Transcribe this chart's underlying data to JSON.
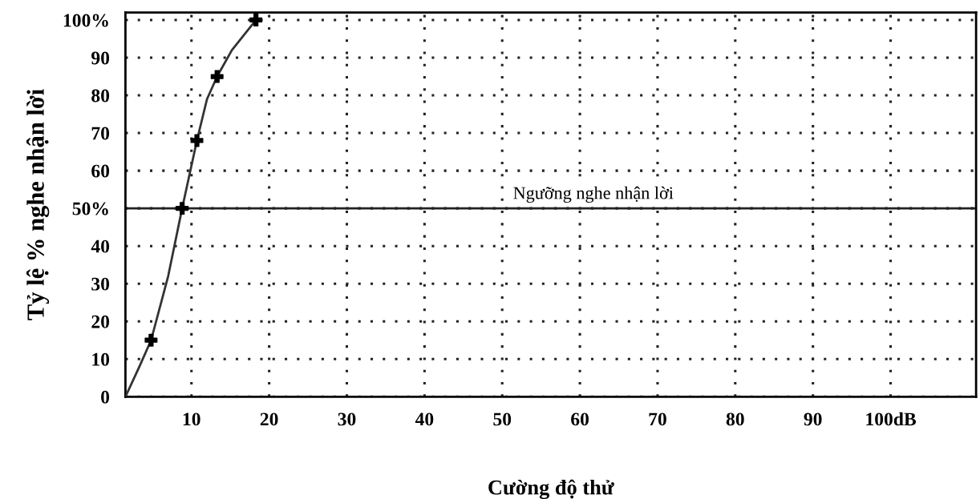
{
  "chart_data": {
    "type": "line",
    "xlabel": "Cường độ thử",
    "ylabel": "Tỷ lệ % nghe nhận lời",
    "xlim": [
      1.5,
      111
    ],
    "ylim": [
      0,
      102
    ],
    "xticks": [
      10,
      20,
      30,
      40,
      50,
      60,
      70,
      80,
      90,
      {
        "value": 100,
        "label": "100dB"
      }
    ],
    "yticks": [
      0,
      10,
      20,
      30,
      40,
      {
        "value": 50,
        "label": "50%"
      },
      60,
      70,
      80,
      90,
      {
        "value": 100,
        "label": "100%"
      }
    ],
    "grid": true,
    "series": [
      {
        "color": "#333333",
        "marker": "none",
        "x": [
          1.5,
          3.3,
          4.8,
          7.0,
          8.8,
          10.7,
          12.0,
          13.3,
          15.2,
          18.3
        ],
        "values": [
          0,
          8,
          15,
          32,
          50,
          68,
          79,
          85,
          92,
          100
        ]
      },
      {
        "type": "scatter",
        "color": "#000000",
        "marker": "cross",
        "x": [
          4.8,
          8.8,
          10.7,
          13.3,
          18.3
        ],
        "values": [
          15,
          50,
          68,
          85,
          100
        ]
      }
    ],
    "ref_lines": [
      {
        "axis": "y",
        "value": 50,
        "label": "Ngưỡng nghe nhận lời",
        "color": "#222222",
        "line_style": "solid"
      }
    ]
  }
}
